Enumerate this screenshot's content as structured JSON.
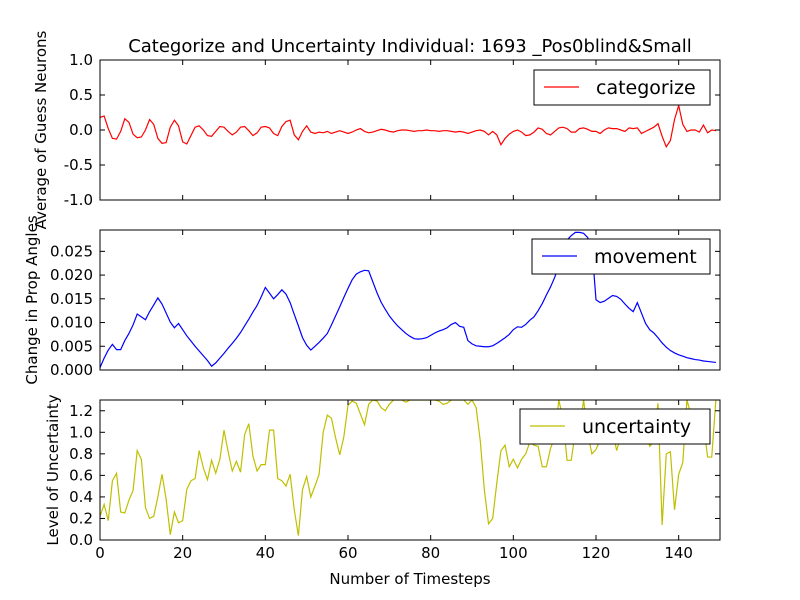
{
  "chart_data": {
    "title": "Categorize and Uncertainty Individual: 1693 _Pos0blind&Small",
    "xlabel": "Number of Timesteps",
    "xlim": [
      0,
      150
    ],
    "xticks": [
      "0",
      "20",
      "40",
      "60",
      "80",
      "100",
      "120",
      "140"
    ],
    "panels": [
      {
        "type": "line",
        "ylabel": "Average of Guess Neurons",
        "ylim": [
          -1.0,
          1.0
        ],
        "yticks": [
          "1.0",
          "0.5",
          "0.0",
          "-0.5",
          "-1.0"
        ],
        "legend_position": "top-right",
        "series": [
          {
            "name": "categorize",
            "color": "#ff0000",
            "x": [
              0,
              1,
              2,
              3,
              4,
              5,
              6,
              7,
              8,
              9,
              10,
              11,
              12,
              13,
              14,
              15,
              16,
              17,
              18,
              19,
              20,
              21,
              22,
              23,
              24,
              25,
              26,
              27,
              28,
              29,
              30,
              31,
              32,
              33,
              34,
              35,
              36,
              37,
              38,
              39,
              40,
              41,
              42,
              43,
              44,
              45,
              46,
              47,
              48,
              49,
              50,
              51,
              52,
              53,
              54,
              55,
              56,
              57,
              58,
              59,
              60,
              61,
              62,
              63,
              64,
              65,
              66,
              67,
              68,
              69,
              70,
              71,
              72,
              73,
              74,
              75,
              76,
              77,
              78,
              79,
              80,
              81,
              82,
              83,
              84,
              85,
              86,
              87,
              88,
              89,
              90,
              91,
              92,
              93,
              94,
              95,
              96,
              97,
              98,
              99,
              100,
              101,
              102,
              103,
              104,
              105,
              106,
              107,
              108,
              109,
              110,
              111,
              112,
              113,
              114,
              115,
              116,
              117,
              118,
              119,
              120,
              121,
              122,
              123,
              124,
              125,
              126,
              127,
              128,
              129,
              130,
              131,
              132,
              133,
              134,
              135,
              136,
              137,
              138,
              139,
              140,
              141,
              142,
              143,
              144,
              145,
              146,
              147,
              148,
              149
            ],
            "values": [
              0.18,
              0.2,
              0.02,
              -0.12,
              -0.13,
              -0.02,
              0.16,
              0.11,
              -0.06,
              -0.11,
              -0.1,
              0.0,
              0.15,
              0.08,
              -0.12,
              -0.19,
              -0.18,
              0.04,
              0.14,
              0.06,
              -0.17,
              -0.2,
              -0.08,
              0.04,
              0.06,
              0.0,
              -0.08,
              -0.09,
              -0.02,
              0.05,
              0.04,
              -0.02,
              -0.07,
              -0.03,
              0.04,
              0.05,
              -0.01,
              -0.08,
              -0.04,
              0.04,
              0.05,
              0.03,
              -0.05,
              -0.08,
              0.05,
              0.12,
              0.14,
              -0.07,
              -0.14,
              -0.02,
              0.06,
              -0.03,
              -0.05,
              -0.03,
              -0.04,
              -0.02,
              -0.05,
              -0.03,
              -0.01,
              -0.03,
              -0.05,
              -0.03,
              0.0,
              0.02,
              -0.02,
              -0.04,
              -0.03,
              -0.01,
              0.01,
              0.0,
              -0.02,
              -0.03,
              -0.01,
              0.0,
              0.0,
              -0.01,
              -0.02,
              -0.01,
              -0.01,
              0.0,
              -0.01,
              -0.01,
              -0.02,
              -0.01,
              -0.01,
              -0.02,
              -0.03,
              -0.02,
              -0.03,
              -0.05,
              -0.03,
              -0.01,
              0.0,
              -0.02,
              -0.07,
              -0.02,
              -0.07,
              -0.21,
              -0.12,
              -0.06,
              -0.02,
              0.0,
              -0.03,
              -0.08,
              -0.07,
              -0.03,
              0.03,
              0.01,
              -0.05,
              -0.07,
              -0.02,
              0.03,
              0.04,
              0.02,
              -0.03,
              -0.03,
              0.02,
              0.03,
              0.01,
              -0.02,
              -0.02,
              -0.05,
              0.0,
              0.03,
              0.02,
              0.02,
              0.0,
              -0.02,
              0.03,
              0.02,
              0.03,
              -0.05,
              -0.02,
              0.01,
              0.04,
              0.09,
              -0.09,
              -0.24,
              -0.15,
              0.15,
              0.35,
              0.08,
              -0.02,
              0.0,
              0.0,
              -0.03,
              0.07,
              -0.04,
              0.0,
              -0.01
            ]
          }
        ]
      },
      {
        "type": "line",
        "ylabel": "Change in Prop Angles",
        "ylim": [
          0.0,
          0.0295
        ],
        "yticks": [
          "0.025",
          "0.020",
          "0.015",
          "0.010",
          "0.005",
          "0.000"
        ],
        "legend_position": "top-right",
        "series": [
          {
            "name": "movement",
            "color": "#0000ff",
            "x": [
              0,
              1,
              2,
              3,
              4,
              5,
              6,
              7,
              8,
              9,
              10,
              11,
              12,
              13,
              14,
              15,
              16,
              17,
              18,
              19,
              20,
              21,
              22,
              23,
              24,
              25,
              26,
              27,
              28,
              29,
              30,
              31,
              32,
              33,
              34,
              35,
              36,
              37,
              38,
              39,
              40,
              41,
              42,
              43,
              44,
              45,
              46,
              47,
              48,
              49,
              50,
              51,
              52,
              53,
              54,
              55,
              56,
              57,
              58,
              59,
              60,
              61,
              62,
              63,
              64,
              65,
              66,
              67,
              68,
              69,
              70,
              71,
              72,
              73,
              74,
              75,
              76,
              77,
              78,
              79,
              80,
              81,
              82,
              83,
              84,
              85,
              86,
              87,
              88,
              89,
              90,
              91,
              92,
              93,
              94,
              95,
              96,
              97,
              98,
              99,
              100,
              101,
              102,
              103,
              104,
              105,
              106,
              107,
              108,
              109,
              110,
              111,
              112,
              113,
              114,
              115,
              116,
              117,
              118,
              119,
              120,
              121,
              122,
              123,
              124,
              125,
              126,
              127,
              128,
              129,
              130,
              131,
              132,
              133,
              134,
              135,
              136,
              137,
              138,
              139,
              140,
              141,
              142,
              143,
              144,
              145,
              146,
              147,
              148,
              149
            ],
            "values": [
              0.0005,
              0.0025,
              0.0042,
              0.0054,
              0.0043,
              0.0043,
              0.0062,
              0.0077,
              0.0095,
              0.0118,
              0.0112,
              0.0106,
              0.0123,
              0.0137,
              0.0152,
              0.0139,
              0.012,
              0.0101,
              0.0089,
              0.0098,
              0.0085,
              0.0072,
              0.0061,
              0.005,
              0.004,
              0.003,
              0.002,
              0.0008,
              0.0015,
              0.0025,
              0.0035,
              0.0046,
              0.0056,
              0.0067,
              0.0079,
              0.0093,
              0.0107,
              0.0122,
              0.0136,
              0.0154,
              0.0174,
              0.0162,
              0.015,
              0.0159,
              0.0169,
              0.016,
              0.0142,
              0.0117,
              0.0093,
              0.0068,
              0.0052,
              0.0042,
              0.005,
              0.0058,
              0.0067,
              0.0077,
              0.0095,
              0.0114,
              0.0133,
              0.0153,
              0.0172,
              0.019,
              0.0202,
              0.0207,
              0.021,
              0.0209,
              0.0186,
              0.0163,
              0.0143,
              0.0128,
              0.0114,
              0.0103,
              0.0093,
              0.0085,
              0.0077,
              0.0071,
              0.0066,
              0.0065,
              0.0066,
              0.0068,
              0.0073,
              0.0078,
              0.0082,
              0.0085,
              0.0089,
              0.0096,
              0.01,
              0.0092,
              0.009,
              0.0062,
              0.0055,
              0.0051,
              0.005,
              0.0049,
              0.0049,
              0.0051,
              0.0056,
              0.0062,
              0.0068,
              0.0075,
              0.0085,
              0.0091,
              0.009,
              0.0096,
              0.0105,
              0.0112,
              0.0125,
              0.014,
              0.0158,
              0.0175,
              0.0195,
              0.022,
              0.0246,
              0.0274,
              0.0283,
              0.029,
              0.029,
              0.0288,
              0.0279,
              0.026,
              0.0148,
              0.0142,
              0.0145,
              0.0151,
              0.0157,
              0.0155,
              0.0149,
              0.0139,
              0.013,
              0.0123,
              0.0142,
              0.012,
              0.0098,
              0.0085,
              0.0078,
              0.0068,
              0.0057,
              0.0048,
              0.0041,
              0.0036,
              0.0032,
              0.0029,
              0.0026,
              0.0024,
              0.0022,
              0.0021,
              0.0019,
              0.0018,
              0.0017,
              0.0016
            ]
          }
        ]
      },
      {
        "type": "line",
        "ylabel": "Level of Uncertainty",
        "ylim": [
          0.0,
          1.3
        ],
        "yticks": [
          "1.2",
          "1.0",
          "0.8",
          "0.6",
          "0.4",
          "0.2",
          "0.0"
        ],
        "legend_position": "top-right",
        "series": [
          {
            "name": "uncertainty",
            "color": "#bfbf00",
            "x": [
              0,
              1,
              2,
              3,
              4,
              5,
              6,
              7,
              8,
              9,
              10,
              11,
              12,
              13,
              14,
              15,
              16,
              17,
              18,
              19,
              20,
              21,
              22,
              23,
              24,
              25,
              26,
              27,
              28,
              29,
              30,
              31,
              32,
              33,
              34,
              35,
              36,
              37,
              38,
              39,
              40,
              41,
              42,
              43,
              44,
              45,
              46,
              47,
              48,
              49,
              50,
              51,
              52,
              53,
              54,
              55,
              56,
              57,
              58,
              59,
              60,
              61,
              62,
              63,
              64,
              65,
              66,
              67,
              68,
              69,
              70,
              71,
              72,
              73,
              74,
              75,
              76,
              77,
              78,
              79,
              80,
              81,
              82,
              83,
              84,
              85,
              86,
              87,
              88,
              89,
              90,
              91,
              92,
              93,
              94,
              95,
              96,
              97,
              98,
              99,
              100,
              101,
              102,
              103,
              104,
              105,
              106,
              107,
              108,
              109,
              110,
              111,
              112,
              113,
              114,
              115,
              116,
              117,
              118,
              119,
              120,
              121,
              122,
              123,
              124,
              125,
              126,
              127,
              128,
              129,
              130,
              131,
              132,
              133,
              134,
              135,
              136,
              137,
              138,
              139,
              140,
              141,
              142,
              143,
              144,
              145,
              146,
              147,
              148,
              149
            ],
            "values": [
              0.22,
              0.33,
              0.18,
              0.55,
              0.62,
              0.26,
              0.25,
              0.37,
              0.46,
              0.83,
              0.75,
              0.3,
              0.2,
              0.22,
              0.4,
              0.61,
              0.38,
              0.05,
              0.26,
              0.16,
              0.18,
              0.47,
              0.55,
              0.57,
              0.83,
              0.67,
              0.56,
              0.74,
              0.62,
              0.75,
              1.02,
              0.82,
              0.64,
              0.73,
              0.63,
              0.98,
              1.08,
              0.78,
              0.64,
              0.7,
              0.7,
              1.02,
              1.02,
              0.57,
              0.55,
              0.5,
              0.61,
              0.28,
              0.04,
              0.47,
              0.59,
              0.4,
              0.5,
              0.61,
              1.0,
              1.16,
              1.13,
              0.95,
              0.79,
              0.96,
              1.25,
              1.29,
              1.27,
              1.17,
              1.07,
              1.26,
              1.3,
              1.29,
              1.23,
              1.2,
              1.26,
              1.3,
              1.3,
              1.3,
              1.28,
              1.3,
              1.3,
              1.3,
              1.3,
              1.3,
              1.3,
              1.3,
              1.29,
              1.26,
              1.27,
              1.3,
              1.3,
              1.3,
              1.3,
              1.26,
              1.3,
              1.23,
              0.92,
              0.46,
              0.15,
              0.2,
              0.53,
              0.83,
              0.88,
              0.68,
              0.75,
              0.67,
              0.75,
              0.8,
              0.91,
              0.88,
              0.87,
              0.68,
              0.68,
              0.85,
              0.95,
              1.3,
              1.13,
              0.74,
              0.74,
              1.0,
              1.02,
              1.3,
              0.99,
              0.8,
              0.84,
              0.93,
              0.95,
              0.98,
              1.01,
              0.83,
              0.97,
              0.97,
              1.01,
              1.04,
              1.02,
              1.08,
              1.03,
              0.87,
              0.91,
              1.27,
              0.14,
              0.8,
              0.82,
              0.28,
              0.61,
              0.72,
              1.3,
              1.16,
              1.07,
              1.09,
              1.08,
              0.77,
              0.77,
              1.3
            ]
          }
        ]
      }
    ]
  }
}
